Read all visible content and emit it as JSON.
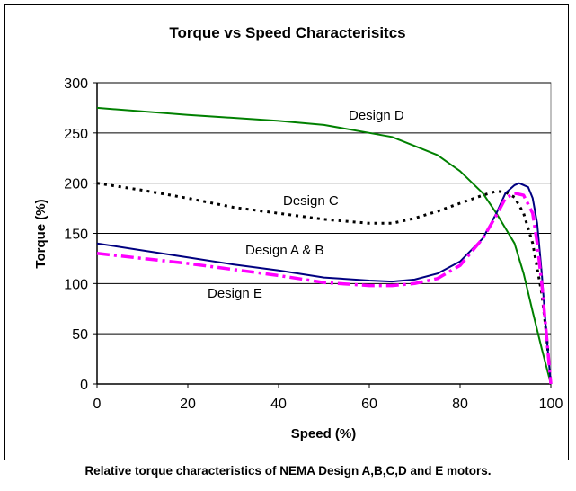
{
  "caption": "Relative torque characteristics of NEMA Design A,B,C,D and E motors.",
  "chart_data": {
    "type": "line",
    "title": "Torque vs Speed Characterisitcs",
    "xlabel": "Speed  (%)",
    "ylabel": "Torque (%)",
    "xlim": [
      0,
      100
    ],
    "ylim": [
      0,
      300
    ],
    "xticks": [
      0,
      20,
      40,
      60,
      80,
      100
    ],
    "yticks": [
      0,
      50,
      100,
      150,
      200,
      250,
      300
    ],
    "grid": "horizontal",
    "series": [
      {
        "name": "Design D",
        "color": "#008000",
        "style": "solid",
        "x": [
          0,
          20,
          40,
          50,
          60,
          65,
          70,
          75,
          80,
          85,
          88,
          90,
          92,
          94,
          96,
          98,
          100
        ],
        "y": [
          275,
          268,
          262,
          258,
          250,
          246,
          237,
          228,
          212,
          190,
          170,
          155,
          140,
          110,
          72,
          35,
          0
        ]
      },
      {
        "name": "Design C",
        "color": "#000000",
        "style": "dotted",
        "x": [
          0,
          10,
          20,
          30,
          40,
          50,
          60,
          65,
          70,
          75,
          80,
          85,
          88,
          90,
          92,
          94,
          96,
          98,
          99,
          100
        ],
        "y": [
          200,
          193,
          185,
          176,
          170,
          164,
          160,
          160,
          165,
          172,
          180,
          188,
          192,
          191,
          186,
          170,
          140,
          90,
          50,
          0
        ]
      },
      {
        "name": "Design A & B",
        "color": "#000080",
        "style": "solid",
        "x": [
          0,
          10,
          20,
          30,
          40,
          50,
          60,
          65,
          70,
          75,
          80,
          85,
          88,
          90,
          92,
          93,
          95,
          96,
          97,
          98,
          99,
          100
        ],
        "y": [
          140,
          133,
          126,
          119,
          113,
          106,
          103,
          102,
          104,
          110,
          122,
          145,
          170,
          190,
          198,
          200,
          196,
          185,
          160,
          110,
          50,
          0
        ]
      },
      {
        "name": "Design E",
        "color": "#FF00FF",
        "style": "dashdot",
        "x": [
          0,
          10,
          20,
          30,
          40,
          50,
          60,
          65,
          70,
          75,
          80,
          85,
          88,
          90,
          92,
          94,
          96,
          97,
          98,
          99,
          100
        ],
        "y": [
          130,
          125,
          120,
          114,
          108,
          101,
          98,
          98,
          100,
          105,
          118,
          145,
          168,
          185,
          190,
          188,
          170,
          140,
          100,
          50,
          0
        ]
      }
    ]
  }
}
